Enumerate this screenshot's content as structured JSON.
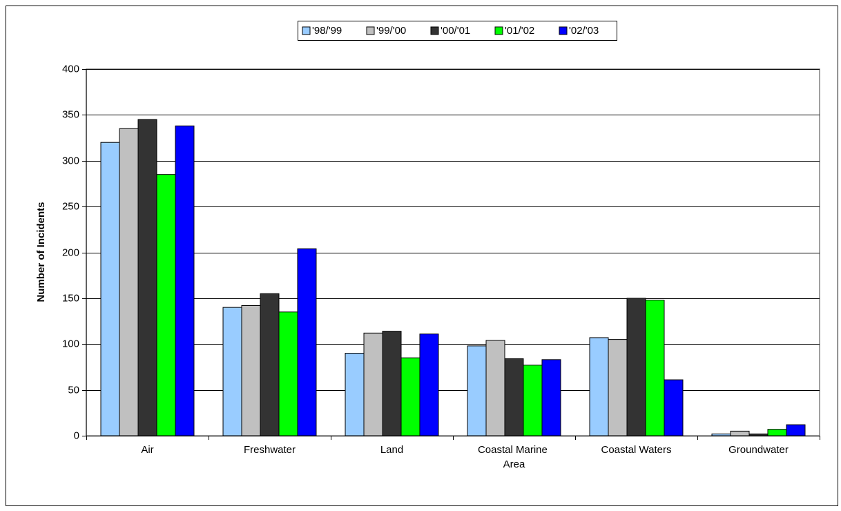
{
  "chart_data": {
    "type": "bar",
    "y_label": "Number of Incidents",
    "categories": [
      "Air",
      "Freshwater",
      "Land",
      "Coastal Marine Area",
      "Coastal Waters",
      "Groundwater"
    ],
    "series": [
      {
        "name": "'98/'99",
        "color": "#99ccff",
        "values": [
          320,
          140,
          90,
          98,
          107,
          2
        ]
      },
      {
        "name": "'99/'00",
        "color": "#c0c0c0",
        "values": [
          335,
          142,
          112,
          104,
          105,
          5
        ]
      },
      {
        "name": "'00/'01",
        "color": "#333333",
        "values": [
          345,
          155,
          114,
          84,
          150,
          2
        ]
      },
      {
        "name": "'01/'02",
        "color": "#00ff00",
        "values": [
          285,
          135,
          85,
          77,
          148,
          7
        ]
      },
      {
        "name": "'02/'03",
        "color": "#0000ff",
        "values": [
          338,
          204,
          111,
          83,
          61,
          12
        ]
      }
    ],
    "ylim": [
      0,
      400
    ],
    "yticks": [
      0,
      50,
      100,
      150,
      200,
      250,
      300,
      350,
      400
    ],
    "grid": true,
    "legend": "top"
  }
}
